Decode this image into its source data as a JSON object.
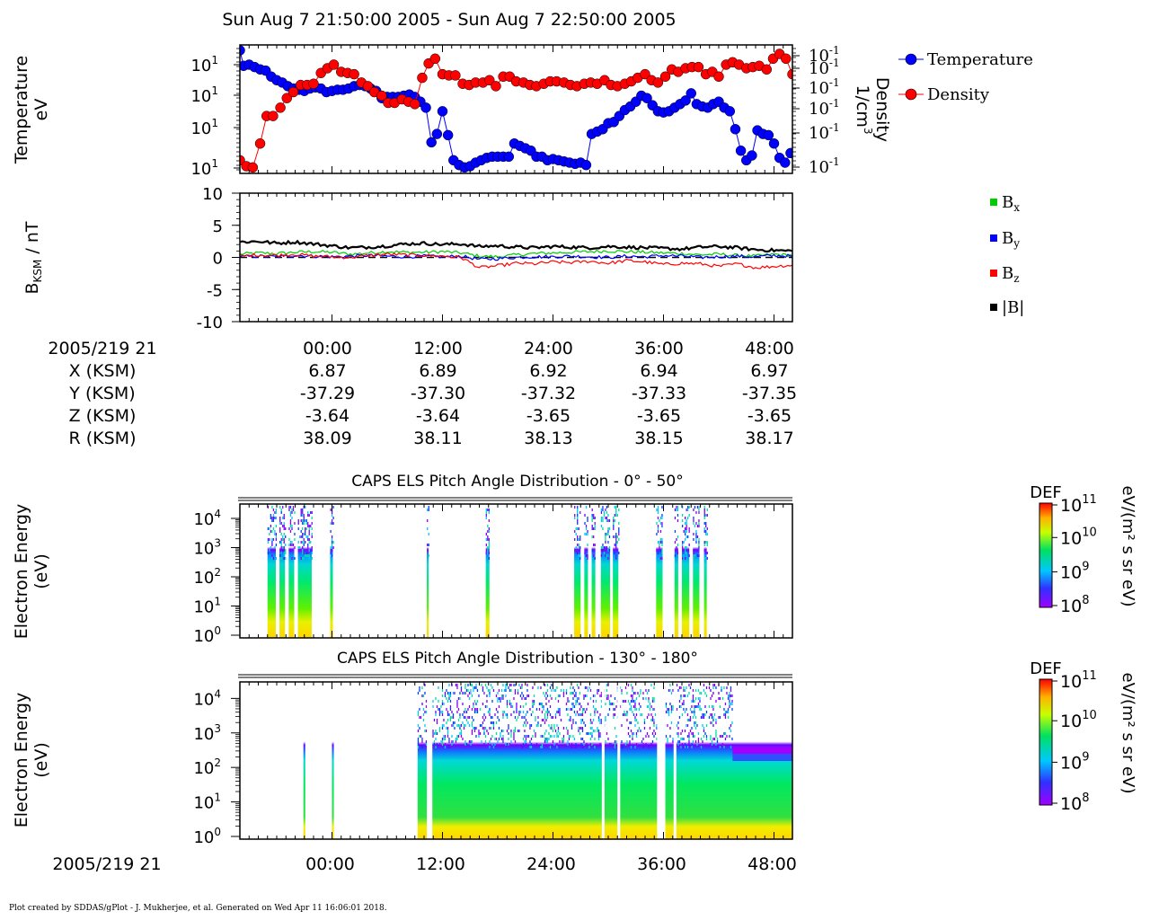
{
  "title": "Sun Aug 7 21:50:00 2005 - Sun Aug 7 22:50:00 2005",
  "footer": "Plot created by SDDAS/gPlot - J. Mukherjee, et al.  Generated on Wed Apr 11 16:06:01 2018.",
  "colors": {
    "temperature": "#0000ff",
    "density": "#ff0000",
    "bx": "#00cc00",
    "by": "#0000ff",
    "bz": "#ff0000",
    "bmag": "#000000"
  },
  "chart_data": [
    {
      "type": "scatter",
      "panel": "moments",
      "ylabel_left": [
        "Temperature",
        "eV"
      ],
      "ylabel_right": [
        "Density",
        "1/cm",
        "3"
      ],
      "yticks_left": [
        {
          "base": "10",
          "exp": "1"
        },
        {
          "base": "10",
          "exp": "1"
        },
        {
          "base": "10",
          "exp": "1"
        },
        {
          "base": "10",
          "exp": "1"
        }
      ],
      "yticks_right": [
        {
          "base": "10",
          "exp": "-1"
        },
        {
          "base": "10",
          "exp": "-1"
        },
        {
          "base": "10",
          "exp": "-1"
        },
        {
          "base": "10",
          "exp": "-1"
        },
        {
          "base": "10",
          "exp": "-1"
        },
        {
          "base": "10",
          "exp": "-1"
        }
      ],
      "legend": [
        "Temperature",
        "Density"
      ],
      "xlim_min": [
        0,
        60
      ],
      "ylim_norm": [
        0,
        1
      ],
      "series": [
        {
          "name": "Temperature",
          "x": [
            0.0,
            0.4,
            1.0,
            1.6,
            2.2,
            2.8,
            3.4,
            4.0,
            4.6,
            5.2,
            5.8,
            6.4,
            7.0,
            7.6,
            8.2,
            8.8,
            9.4,
            10.0,
            10.6,
            11.2,
            11.8,
            12.4,
            13.0,
            13.6,
            14.2,
            14.8,
            15.4,
            16.0,
            16.6,
            17.2,
            17.8,
            18.4,
            19.0,
            19.6,
            20.2,
            20.8,
            21.4,
            22.0,
            22.6,
            23.2,
            23.8,
            24.4,
            25.0,
            25.6,
            26.2,
            26.8,
            27.4,
            28.0,
            28.6,
            29.2,
            29.8,
            30.4,
            31.0,
            31.6,
            32.2,
            32.8,
            33.4,
            34.0,
            34.6,
            35.2,
            35.8,
            36.4,
            37.0,
            37.6,
            38.2,
            38.8,
            39.4,
            40.0,
            40.6,
            41.2,
            41.8,
            42.4,
            43.0,
            43.6,
            44.2,
            44.8,
            45.4,
            46.0,
            46.6,
            47.2,
            47.8,
            48.4,
            49.0,
            49.6,
            50.2,
            50.8,
            51.4,
            52.0,
            52.6,
            53.2,
            53.8,
            54.4,
            55.0,
            55.6,
            56.2,
            56.8,
            57.4,
            58.0,
            58.6,
            59.2,
            59.8
          ],
          "v": [
            1.0,
            0.87,
            0.88,
            0.86,
            0.84,
            0.83,
            0.78,
            0.75,
            0.73,
            0.7,
            0.68,
            0.67,
            0.66,
            0.68,
            0.69,
            0.68,
            0.65,
            0.66,
            0.67,
            0.67,
            0.68,
            0.7,
            0.71,
            0.7,
            0.68,
            0.66,
            0.6,
            0.61,
            0.61,
            0.61,
            0.62,
            0.63,
            0.61,
            0.57,
            0.52,
            0.23,
            0.3,
            0.49,
            0.29,
            0.08,
            0.04,
            0.02,
            0.03,
            0.06,
            0.08,
            0.1,
            0.11,
            0.11,
            0.11,
            0.11,
            0.22,
            0.2,
            0.18,
            0.16,
            0.11,
            0.11,
            0.08,
            0.09,
            0.08,
            0.07,
            0.06,
            0.05,
            0.06,
            0.04,
            0.3,
            0.32,
            0.34,
            0.39,
            0.4,
            0.45,
            0.5,
            0.53,
            0.57,
            0.62,
            0.6,
            0.54,
            0.49,
            0.48,
            0.49,
            0.52,
            0.55,
            0.58,
            0.64,
            0.55,
            0.53,
            0.52,
            0.55,
            0.57,
            0.52,
            0.49,
            0.34,
            0.16,
            0.08,
            0.12,
            0.33,
            0.3,
            0.29,
            0.22,
            0.1,
            0.06,
            0.14,
            0.19
          ]
        },
        {
          "name": "Density",
          "x": [
            0.0,
            0.7,
            1.4,
            2.2,
            2.9,
            3.6,
            4.4,
            5.1,
            5.8,
            6.6,
            7.3,
            8.0,
            8.8,
            9.5,
            10.2,
            11.0,
            11.7,
            12.4,
            13.2,
            13.9,
            14.6,
            15.4,
            16.1,
            16.8,
            17.6,
            18.3,
            19.0,
            19.8,
            20.5,
            21.2,
            22.0,
            22.7,
            23.4,
            24.2,
            24.9,
            25.6,
            26.4,
            27.1,
            27.8,
            28.6,
            29.3,
            30.0,
            30.8,
            31.5,
            32.2,
            33.0,
            33.7,
            34.4,
            35.2,
            35.9,
            36.6,
            37.4,
            38.1,
            38.8,
            39.6,
            40.3,
            41.0,
            41.8,
            42.5,
            43.2,
            44.0,
            44.7,
            45.4,
            46.2,
            46.9,
            47.6,
            48.4,
            49.1,
            49.8,
            50.6,
            51.3,
            52.0,
            52.8,
            53.5,
            54.2,
            55.0,
            55.7,
            56.4,
            57.2,
            57.9,
            58.6,
            59.3,
            60.0
          ],
          "v": [
            0.08,
            0.03,
            0.02,
            0.22,
            0.45,
            0.45,
            0.52,
            0.6,
            0.65,
            0.71,
            0.71,
            0.72,
            0.81,
            0.85,
            0.88,
            0.82,
            0.81,
            0.8,
            0.73,
            0.7,
            0.65,
            0.62,
            0.56,
            0.56,
            0.59,
            0.57,
            0.55,
            0.77,
            0.89,
            0.93,
            0.8,
            0.79,
            0.79,
            0.72,
            0.71,
            0.73,
            0.73,
            0.75,
            0.7,
            0.78,
            0.78,
            0.74,
            0.73,
            0.71,
            0.7,
            0.72,
            0.74,
            0.74,
            0.73,
            0.71,
            0.7,
            0.72,
            0.73,
            0.72,
            0.75,
            0.71,
            0.7,
            0.72,
            0.74,
            0.77,
            0.8,
            0.75,
            0.73,
            0.78,
            0.84,
            0.82,
            0.85,
            0.86,
            0.86,
            0.8,
            0.82,
            0.78,
            0.88,
            0.9,
            0.88,
            0.85,
            0.86,
            0.87,
            0.84,
            0.93,
            0.97,
            0.93,
            0.8
          ]
        }
      ]
    },
    {
      "type": "line",
      "panel": "magnetic-field",
      "ylabel": "B",
      "ylabel_sub": "KSM",
      "ylabel_unit": " / nT",
      "yticks": [
        "10",
        "5",
        "0",
        "-5",
        "-10"
      ],
      "ylim": [
        -10,
        10
      ],
      "legend": [
        {
          "base": "B",
          "sub": "x"
        },
        {
          "base": "B",
          "sub": "y"
        },
        {
          "base": "B",
          "sub": "z"
        },
        {
          "base": "|B|",
          "sub": ""
        }
      ],
      "xlim_min": [
        0,
        60
      ],
      "series": [
        {
          "name": "Bx",
          "x": [
            0,
            2,
            4,
            6,
            8,
            10,
            12,
            14,
            16,
            18,
            20,
            22,
            24,
            26,
            28,
            30,
            32,
            34,
            36,
            38,
            40,
            42,
            44,
            46,
            48,
            50,
            52,
            54,
            56,
            58,
            60
          ],
          "values": [
            0.5,
            0.7,
            0.6,
            0.8,
            0.9,
            0.8,
            0.5,
            0.7,
            0.9,
            0.8,
            0.8,
            0.9,
            0.7,
            0.2,
            0.1,
            0.4,
            0.6,
            0.7,
            0.8,
            0.9,
            1.0,
            0.9,
            0.8,
            0.7,
            0.6,
            0.4,
            0.5,
            0.3,
            0.2,
            0.5,
            0.3
          ]
        },
        {
          "name": "By",
          "x": [
            0,
            2,
            4,
            6,
            8,
            10,
            12,
            14,
            16,
            18,
            20,
            22,
            24,
            26,
            28,
            30,
            32,
            34,
            36,
            38,
            40,
            42,
            44,
            46,
            48,
            50,
            52,
            54,
            56,
            58,
            60
          ],
          "values": [
            0.1,
            0.2,
            0.1,
            0.3,
            0.2,
            0.1,
            0.2,
            0.3,
            0.2,
            0.1,
            0.2,
            0.1,
            0.2,
            -0.3,
            -0.2,
            0.0,
            0.1,
            0.1,
            0.2,
            0.1,
            0.0,
            0.2,
            0.1,
            0.3,
            0.2,
            0.0,
            0.1,
            0.2,
            0.1,
            0.3,
            0.2
          ]
        },
        {
          "name": "Bz",
          "x": [
            0,
            2,
            4,
            6,
            8,
            10,
            12,
            14,
            16,
            18,
            20,
            22,
            24,
            26,
            28,
            30,
            32,
            34,
            36,
            38,
            40,
            42,
            44,
            46,
            48,
            50,
            52,
            54,
            56,
            58,
            60
          ],
          "values": [
            0.2,
            0.4,
            0.3,
            0.5,
            0.2,
            0.1,
            0.0,
            0.3,
            0.5,
            0.4,
            0.3,
            0.2,
            0.0,
            -1.6,
            -1.3,
            -0.9,
            -1.0,
            -0.7,
            -0.8,
            -0.6,
            -0.9,
            -0.5,
            -0.7,
            -1.1,
            -0.9,
            -1.0,
            -1.4,
            -1.0,
            -1.6,
            -1.4,
            -1.2
          ]
        },
        {
          "name": "|B|",
          "x": [
            0,
            2,
            4,
            6,
            8,
            10,
            12,
            14,
            16,
            18,
            20,
            22,
            24,
            26,
            28,
            30,
            32,
            34,
            36,
            38,
            40,
            42,
            44,
            46,
            48,
            50,
            52,
            54,
            56,
            58,
            60
          ],
          "values": [
            2.4,
            2.5,
            2.2,
            2.4,
            2.1,
            1.8,
            1.5,
            1.6,
            1.8,
            2.1,
            2.2,
            2.0,
            2.1,
            1.7,
            1.8,
            1.6,
            1.5,
            1.7,
            1.6,
            1.5,
            1.7,
            1.6,
            1.5,
            1.4,
            1.3,
            1.6,
            1.7,
            1.5,
            1.2,
            1.1,
            1.0
          ]
        }
      ]
    },
    {
      "type": "heatmap",
      "panel": "els-pad-0-50",
      "title": "CAPS ELS Pitch Angle Distribution - 0° - 50°",
      "ylabel": [
        "Electron Energy",
        "(eV)"
      ],
      "yticks": [
        {
          "base": "10",
          "exp": "4"
        },
        {
          "base": "10",
          "exp": "3"
        },
        {
          "base": "10",
          "exp": "2"
        },
        {
          "base": "10",
          "exp": "1"
        },
        {
          "base": "10",
          "exp": "0"
        }
      ],
      "ylim_log10_eV": [
        0,
        4.4
      ],
      "colorbar": {
        "label": "DEF",
        "unit": "eV/(m² s sr eV)",
        "ticks": [
          {
            "base": "10",
            "exp": "11"
          },
          {
            "base": "10",
            "exp": "10"
          },
          {
            "base": "10",
            "exp": "9"
          },
          {
            "base": "10",
            "exp": "8"
          }
        ],
        "range_log10": [
          8,
          11
        ]
      },
      "bursts_min": [
        [
          3.0,
          3.9
        ],
        [
          4.3,
          4.9
        ],
        [
          5.3,
          5.9
        ],
        [
          6.3,
          7.8
        ],
        [
          9.8,
          10.1
        ],
        [
          20.3,
          20.5
        ],
        [
          26.7,
          27.1
        ],
        [
          36.3,
          37.0
        ],
        [
          37.4,
          37.8
        ],
        [
          38.2,
          38.6
        ],
        [
          39.2,
          40.2
        ],
        [
          40.5,
          41.1
        ],
        [
          45.2,
          45.9
        ],
        [
          47.2,
          47.6
        ],
        [
          48.0,
          48.8
        ],
        [
          49.2,
          49.9
        ],
        [
          50.4,
          50.7
        ]
      ]
    },
    {
      "type": "heatmap",
      "panel": "els-pad-130-180",
      "title": "CAPS ELS Pitch Angle Distribution - 130° - 180°",
      "ylabel": [
        "Electron Energy",
        "(eV)"
      ],
      "yticks": [
        {
          "base": "10",
          "exp": "4"
        },
        {
          "base": "10",
          "exp": "3"
        },
        {
          "base": "10",
          "exp": "2"
        },
        {
          "base": "10",
          "exp": "1"
        },
        {
          "base": "10",
          "exp": "0"
        }
      ],
      "ylim_log10_eV": [
        0,
        4.4
      ],
      "colorbar": {
        "label": "DEF",
        "unit": "eV/(m² s sr eV)",
        "ticks": [
          {
            "base": "10",
            "exp": "11"
          },
          {
            "base": "10",
            "exp": "10"
          },
          {
            "base": "10",
            "exp": "9"
          },
          {
            "base": "10",
            "exp": "8"
          }
        ],
        "range_log10": [
          8,
          11
        ]
      },
      "bursts_min": [
        [
          6.9,
          7.1
        ],
        [
          10.0,
          10.2
        ]
      ],
      "continuous_from_min": 19.3,
      "gaps_min": [
        [
          20.3,
          20.9
        ],
        [
          39.3,
          39.6
        ],
        [
          41.0,
          41.3
        ],
        [
          45.3,
          46.2
        ],
        [
          47.1,
          47.4
        ]
      ]
    }
  ],
  "time_axis": {
    "epoch_label": "2005/219 21",
    "ticks": [
      {
        "label": "00:00",
        "min": 10
      },
      {
        "label": "12:00",
        "min": 22
      },
      {
        "label": "24:00",
        "min": 34
      },
      {
        "label": "36:00",
        "min": 46
      },
      {
        "label": "48:00",
        "min": 58
      }
    ]
  },
  "ephemeris": {
    "rows": [
      {
        "label": "X (KSM)",
        "values": [
          "6.87",
          "6.89",
          "6.92",
          "6.94",
          "6.97"
        ]
      },
      {
        "label": "Y (KSM)",
        "values": [
          "-37.29",
          "-37.30",
          "-37.32",
          "-37.33",
          "-37.35"
        ]
      },
      {
        "label": "Z (KSM)",
        "values": [
          "-3.64",
          "-3.64",
          "-3.65",
          "-3.65",
          "-3.65"
        ]
      },
      {
        "label": "R (KSM)",
        "values": [
          "38.09",
          "38.11",
          "38.13",
          "38.15",
          "38.17"
        ]
      }
    ]
  }
}
